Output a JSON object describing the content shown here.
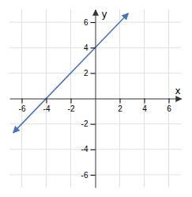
{
  "chart_data": {
    "type": "line",
    "x": [
      -6.7,
      2.7
    ],
    "values": [
      -2.7,
      6.7
    ],
    "color": "#4472C4",
    "xlabel": "x",
    "ylabel": "y",
    "xlim": [
      -7,
      7
    ],
    "ylim": [
      -7,
      7
    ],
    "xticks": [
      -6,
      -4,
      -2,
      2,
      4,
      6
    ],
    "yticks": [
      -6,
      -4,
      -2,
      2,
      4,
      6
    ],
    "grid": true
  }
}
